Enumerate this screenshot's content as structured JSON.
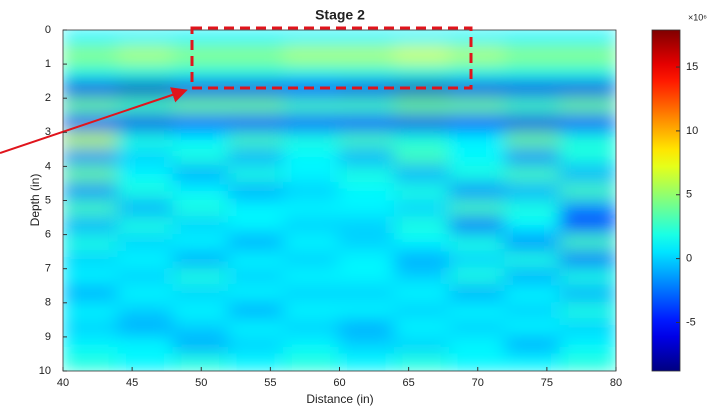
{
  "chart_data": {
    "type": "heatmap",
    "title": "Stage 2",
    "xlabel": "Distance (in)",
    "ylabel": "Depth (in)",
    "colorbar_label": "×10⁶",
    "colormap": "jet",
    "xlim": [
      40,
      80
    ],
    "xticks": [
      40,
      45,
      50,
      55,
      60,
      65,
      70,
      75,
      80
    ],
    "ylim": [
      10,
      0
    ],
    "yticks": [
      0,
      1,
      2,
      3,
      4,
      5,
      6,
      7,
      8,
      9,
      10
    ],
    "clim": [
      -8.8,
      17.9
    ],
    "cticks": [
      -5,
      0,
      5,
      10,
      15
    ],
    "x": [
      42,
      46,
      50,
      54,
      58,
      62,
      66,
      70,
      74,
      78
    ],
    "y": [
      0.25,
      0.75,
      1.25,
      1.75,
      2.25,
      2.75,
      3.25,
      3.75,
      4.25,
      4.75,
      5.25,
      5.75,
      6.25,
      6.75,
      7.25,
      7.75,
      8.25,
      8.75,
      9.25,
      9.75
    ],
    "z": [
      [
        1,
        1,
        1,
        1,
        1,
        1,
        1,
        1,
        1,
        1
      ],
      [
        5,
        6,
        5,
        5,
        6,
        6,
        7,
        6,
        5,
        5
      ],
      [
        2,
        2,
        2,
        2,
        2,
        2,
        2,
        2,
        2,
        2
      ],
      [
        -6,
        -7,
        -6,
        -6,
        -5,
        -6,
        -7,
        -6,
        -6,
        -6
      ],
      [
        4,
        3,
        4,
        4,
        3,
        3,
        4,
        4,
        3,
        4
      ],
      [
        -5,
        -6,
        -4,
        -5,
        -4,
        -5,
        -6,
        -5,
        -6,
        -5
      ],
      [
        6,
        2,
        1,
        3,
        2,
        3,
        2,
        1,
        4,
        2
      ],
      [
        -2,
        0,
        2,
        -1,
        1,
        -1,
        3,
        1,
        -2,
        2
      ],
      [
        4,
        1,
        -1,
        2,
        1,
        2,
        -1,
        2,
        3,
        -1
      ],
      [
        -2,
        2,
        1,
        -1,
        0,
        1,
        2,
        -2,
        -1,
        3
      ],
      [
        3,
        -1,
        2,
        1,
        1,
        1,
        0,
        3,
        2,
        -2
      ],
      [
        -1,
        2,
        0,
        1,
        0,
        0,
        2,
        -3,
        1,
        -4
      ],
      [
        2,
        0,
        1,
        -1,
        1,
        0,
        1,
        2,
        -2,
        3
      ],
      [
        0,
        1,
        -1,
        1,
        0,
        1,
        -1,
        0,
        2,
        -3
      ],
      [
        1,
        0,
        2,
        0,
        1,
        1,
        0,
        2,
        -1,
        2
      ],
      [
        -1,
        1,
        0,
        1,
        0,
        0,
        1,
        -1,
        1,
        -1
      ],
      [
        1,
        0,
        1,
        -1,
        1,
        1,
        0,
        1,
        0,
        2
      ],
      [
        0,
        -1,
        0,
        1,
        0,
        -1,
        1,
        0,
        1,
        0
      ],
      [
        1,
        1,
        -1,
        0,
        1,
        0,
        0,
        1,
        -1,
        1
      ],
      [
        2,
        1,
        2,
        1,
        2,
        1,
        2,
        1,
        1,
        2
      ]
    ]
  }
}
